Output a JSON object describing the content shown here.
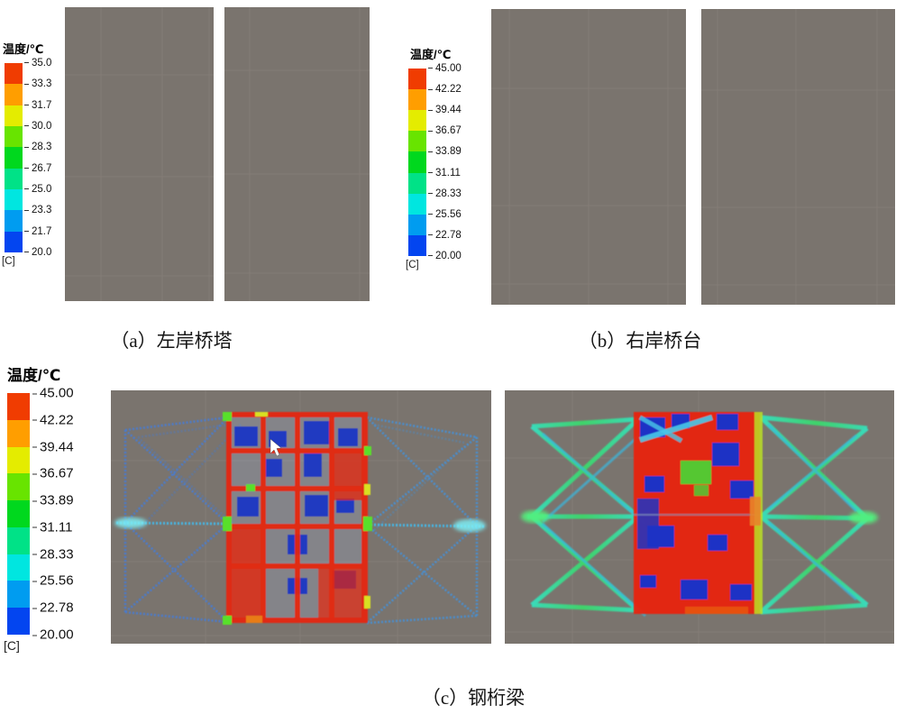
{
  "page": {
    "background_color": "#ffffff"
  },
  "figure": {
    "colorbar": {
      "colors_top_to_bottom": [
        "#f03c01",
        "#ff9e00",
        "#e4ec00",
        "#68e400",
        "#00d81e",
        "#00e287",
        "#00e6e0",
        "#009cf0",
        "#0345f0"
      ]
    },
    "panel_a": {
      "caption": "（a）左岸桥塔",
      "legend": {
        "title": "温度/℃",
        "unit_label": "[C]",
        "tick_labels": [
          "35.0",
          "33.3",
          "31.7",
          "30.0",
          "28.3",
          "26.7",
          "25.0",
          "23.3",
          "21.7",
          "20.0"
        ]
      },
      "views": [
        "left-bank-tower-oblique-view",
        "left-bank-tower-front-view"
      ]
    },
    "panel_b": {
      "caption": "（b）右岸桥台",
      "legend": {
        "title": "温度/℃",
        "unit_label": "[C]",
        "tick_labels": [
          "45.00",
          "42.22",
          "39.44",
          "36.67",
          "33.89",
          "31.11",
          "28.33",
          "25.56",
          "22.78",
          "20.00"
        ]
      },
      "views": [
        "right-bank-abutment-view-1",
        "right-bank-abutment-view-2"
      ]
    },
    "panel_c": {
      "caption": "（c）钢桁梁",
      "legend": {
        "title": "温度/℃",
        "unit_label": "[C]",
        "tick_labels": [
          "45.00",
          "42.22",
          "39.44",
          "36.67",
          "33.89",
          "31.11",
          "28.33",
          "25.56",
          "22.78",
          "20.00"
        ]
      },
      "views": [
        "steel-truss-girder-view-1",
        "steel-truss-girder-view-2"
      ]
    },
    "viewport_colors": {
      "background": "#7a746e",
      "grid_line": "#8a847e",
      "cold_blue": "#1a40e8",
      "hot_red": "#e8240a"
    },
    "icons": {
      "cursor": "white-mouse-pointer"
    }
  }
}
